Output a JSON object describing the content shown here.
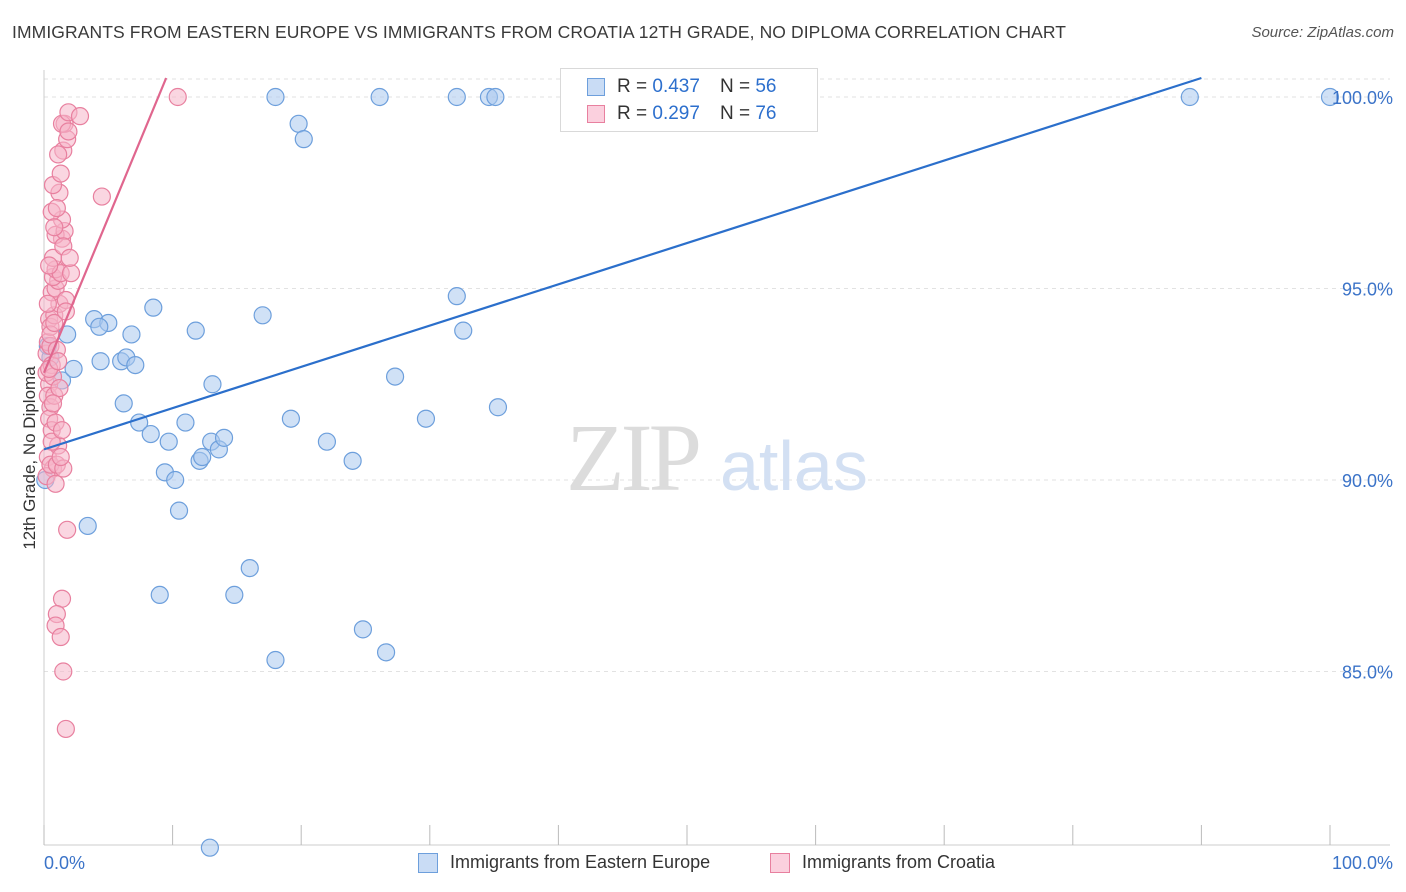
{
  "title": "IMMIGRANTS FROM EASTERN EUROPE VS IMMIGRANTS FROM CROATIA 12TH GRADE, NO DIPLOMA CORRELATION CHART",
  "source": "Source: ZipAtlas.com",
  "watermark": {
    "zip": "ZIP",
    "atlas": "atlas"
  },
  "legend_top": {
    "r_label": "R =",
    "n_label": "N =",
    "series": [
      {
        "r": "0.437",
        "n": "56"
      },
      {
        "r": "0.297",
        "n": "76"
      }
    ]
  },
  "colors": {
    "blue_fill": "#a9c8ee",
    "blue_stroke": "#6d9fdc",
    "blue_line": "#2b6fcb",
    "pink_fill": "#f5b5c9",
    "pink_stroke": "#e8809f",
    "pink_line": "#e0668e",
    "tick_label": "#3b73c8",
    "grid": "#e2e2e2"
  },
  "chart_data": {
    "type": "scatter",
    "title": "IMMIGRANTS FROM EASTERN EUROPE VS IMMIGRANTS FROM CROATIA 12TH GRADE, NO DIPLOMA CORRELATION CHART",
    "xlabel": "",
    "ylabel": "12th Grade, No Diploma",
    "xlim": [
      0,
      100
    ],
    "ylim": [
      80.3,
      100.8
    ],
    "x_ticks": [
      0,
      10,
      20,
      30,
      40,
      50,
      60,
      70,
      80,
      90,
      100
    ],
    "x_tick_labels": [
      {
        "value": 0,
        "label": "0.0%"
      },
      {
        "value": 100,
        "label": "100.0%"
      }
    ],
    "y_ticks": [
      {
        "value": 100,
        "label": "100.0%"
      },
      {
        "value": 95,
        "label": "95.0%"
      },
      {
        "value": 90,
        "label": "90.0%"
      },
      {
        "value": 85,
        "label": "85.0%"
      }
    ],
    "series": [
      {
        "name": "Immigrants from Eastern Europe",
        "color": "blue",
        "r": 0.437,
        "n": 56,
        "trend": {
          "x": [
            0,
            90
          ],
          "y": [
            90.8,
            100.0
          ]
        },
        "points": [
          [
            0.1,
            90.0
          ],
          [
            0.5,
            93.2
          ],
          [
            1.4,
            92.6
          ],
          [
            1.8,
            93.8
          ],
          [
            2.3,
            92.9
          ],
          [
            3.4,
            88.8
          ],
          [
            3.9,
            94.2
          ],
          [
            5.0,
            94.1
          ],
          [
            4.3,
            94.0
          ],
          [
            4.4,
            93.1
          ],
          [
            6.0,
            93.1
          ],
          [
            6.4,
            93.2
          ],
          [
            6.2,
            92.0
          ],
          [
            7.1,
            93.0
          ],
          [
            6.8,
            93.8
          ],
          [
            7.4,
            91.5
          ],
          [
            8.3,
            91.2
          ],
          [
            8.5,
            94.5
          ],
          [
            9.4,
            90.2
          ],
          [
            9.7,
            91.0
          ],
          [
            10.2,
            90.0
          ],
          [
            10.5,
            89.2
          ],
          [
            9.0,
            87.0
          ],
          [
            11.0,
            91.5
          ],
          [
            11.8,
            93.9
          ],
          [
            12.1,
            90.5
          ],
          [
            12.3,
            90.6
          ],
          [
            13.0,
            91.0
          ],
          [
            13.1,
            92.5
          ],
          [
            13.6,
            90.8
          ],
          [
            14.0,
            91.1
          ],
          [
            14.8,
            87.0
          ],
          [
            16.0,
            87.7
          ],
          [
            17.0,
            94.3
          ],
          [
            18.0,
            85.3
          ],
          [
            19.2,
            91.6
          ],
          [
            19.8,
            99.3
          ],
          [
            20.2,
            98.9
          ],
          [
            22.0,
            91.0
          ],
          [
            24.0,
            90.5
          ],
          [
            24.8,
            86.1
          ],
          [
            26.6,
            85.5
          ],
          [
            27.3,
            92.7
          ],
          [
            29.7,
            91.6
          ],
          [
            32.1,
            94.8
          ],
          [
            32.6,
            93.9
          ],
          [
            35.3,
            91.9
          ],
          [
            12.9,
            80.4
          ],
          [
            18.0,
            100.0
          ],
          [
            26.1,
            100.0
          ],
          [
            32.1,
            100.0
          ],
          [
            34.6,
            100.0
          ],
          [
            35.1,
            100.0
          ],
          [
            89.1,
            100.0
          ],
          [
            100.0,
            100.0
          ],
          [
            0.3,
            93.5
          ]
        ]
      },
      {
        "name": "Immigrants from Croatia",
        "color": "pink",
        "r": 0.297,
        "n": 76,
        "trend": {
          "x": [
            0,
            9.5
          ],
          "y": [
            92.8,
            100.0
          ]
        },
        "points": [
          [
            0.2,
            93.3
          ],
          [
            0.3,
            93.6
          ],
          [
            0.4,
            92.5
          ],
          [
            0.2,
            92.8
          ],
          [
            0.5,
            93.5
          ],
          [
            0.6,
            93.0
          ],
          [
            0.7,
            92.7
          ],
          [
            0.3,
            92.2
          ],
          [
            0.5,
            91.9
          ],
          [
            0.8,
            92.2
          ],
          [
            0.4,
            91.6
          ],
          [
            0.6,
            91.3
          ],
          [
            0.9,
            91.5
          ],
          [
            0.3,
            90.6
          ],
          [
            0.7,
            90.3
          ],
          [
            0.2,
            90.1
          ],
          [
            0.5,
            90.4
          ],
          [
            1.1,
            90.9
          ],
          [
            1.0,
            90.4
          ],
          [
            1.5,
            90.3
          ],
          [
            0.4,
            94.2
          ],
          [
            0.5,
            94.0
          ],
          [
            0.8,
            94.3
          ],
          [
            1.2,
            94.6
          ],
          [
            0.6,
            94.9
          ],
          [
            0.9,
            95.0
          ],
          [
            1.1,
            95.2
          ],
          [
            0.7,
            95.3
          ],
          [
            0.9,
            95.5
          ],
          [
            1.3,
            95.4
          ],
          [
            1.7,
            94.7
          ],
          [
            2.1,
            95.4
          ],
          [
            0.7,
            95.8
          ],
          [
            1.4,
            96.3
          ],
          [
            0.9,
            96.4
          ],
          [
            1.6,
            96.5
          ],
          [
            1.4,
            96.8
          ],
          [
            0.6,
            97.0
          ],
          [
            1.2,
            97.5
          ],
          [
            0.7,
            97.7
          ],
          [
            1.3,
            98.0
          ],
          [
            1.5,
            98.6
          ],
          [
            1.1,
            98.5
          ],
          [
            1.8,
            98.9
          ],
          [
            1.6,
            99.3
          ],
          [
            1.4,
            99.3
          ],
          [
            1.9,
            99.6
          ],
          [
            4.5,
            97.4
          ],
          [
            2.8,
            99.5
          ],
          [
            1.9,
            99.1
          ],
          [
            10.4,
            100.0
          ],
          [
            1.4,
            86.9
          ],
          [
            1.0,
            86.5
          ],
          [
            0.9,
            86.2
          ],
          [
            1.3,
            85.9
          ],
          [
            1.5,
            85.0
          ],
          [
            1.8,
            88.7
          ],
          [
            1.7,
            83.5
          ],
          [
            0.5,
            93.8
          ],
          [
            0.8,
            94.1
          ],
          [
            1.0,
            93.4
          ],
          [
            0.4,
            92.9
          ],
          [
            1.2,
            92.4
          ],
          [
            0.6,
            91.0
          ],
          [
            1.3,
            90.6
          ],
          [
            0.9,
            89.9
          ],
          [
            0.4,
            95.6
          ],
          [
            1.5,
            96.1
          ],
          [
            2.0,
            95.8
          ],
          [
            0.8,
            96.6
          ],
          [
            1.0,
            97.1
          ],
          [
            1.7,
            94.4
          ],
          [
            0.3,
            94.6
          ],
          [
            1.1,
            93.1
          ],
          [
            0.7,
            92.0
          ],
          [
            1.4,
            91.3
          ]
        ]
      }
    ]
  },
  "legend_bottom": [
    {
      "label": "Immigrants from Eastern Europe"
    },
    {
      "label": "Immigrants from Croatia"
    }
  ]
}
